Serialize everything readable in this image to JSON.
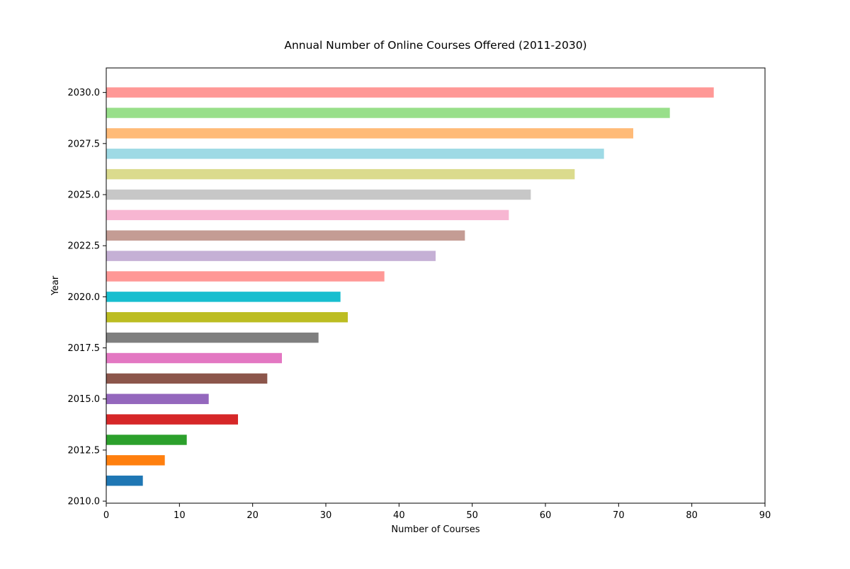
{
  "chart_data": {
    "type": "bar",
    "orientation": "horizontal",
    "title": "Annual Number of Online Courses Offered (2011-2030)",
    "xlabel": "Number of Courses",
    "ylabel": "Year",
    "xlim": [
      0,
      90
    ],
    "ylim": [
      2009.9,
      2031.2
    ],
    "x_ticks": [
      0,
      10,
      20,
      30,
      40,
      50,
      60,
      70,
      80,
      90
    ],
    "x_tick_labels": [
      "0",
      "10",
      "20",
      "30",
      "40",
      "50",
      "60",
      "70",
      "80",
      "90"
    ],
    "y_ticks": [
      2010.0,
      2012.5,
      2015.0,
      2017.5,
      2020.0,
      2022.5,
      2025.0,
      2027.5,
      2030.0
    ],
    "y_tick_labels": [
      "2010.0",
      "2012.5",
      "2015.0",
      "2017.5",
      "2020.0",
      "2022.5",
      "2025.0",
      "2027.5",
      "2030.0"
    ],
    "grid": false,
    "legend": false,
    "categories": [
      2011,
      2012,
      2013,
      2014,
      2015,
      2016,
      2017,
      2018,
      2019,
      2020,
      2021,
      2022,
      2023,
      2024,
      2025,
      2026,
      2027,
      2028,
      2029,
      2030
    ],
    "values": [
      5,
      8,
      11,
      18,
      14,
      22,
      24,
      29,
      33,
      32,
      38,
      45,
      49,
      55,
      58,
      64,
      68,
      72,
      77,
      83
    ],
    "bar_colors": [
      "#1f77b4",
      "#ff7f0e",
      "#2ca02c",
      "#d62728",
      "#9467bd",
      "#8c564b",
      "#e377c2",
      "#7f7f7f",
      "#bcbd22",
      "#17becf",
      "#ff9896",
      "#c5b0d5",
      "#c49c94",
      "#f7b6d2",
      "#c7c7c7",
      "#dbdb8d",
      "#9edae5",
      "#ffbb78",
      "#98df8a",
      "#ff9896"
    ]
  }
}
